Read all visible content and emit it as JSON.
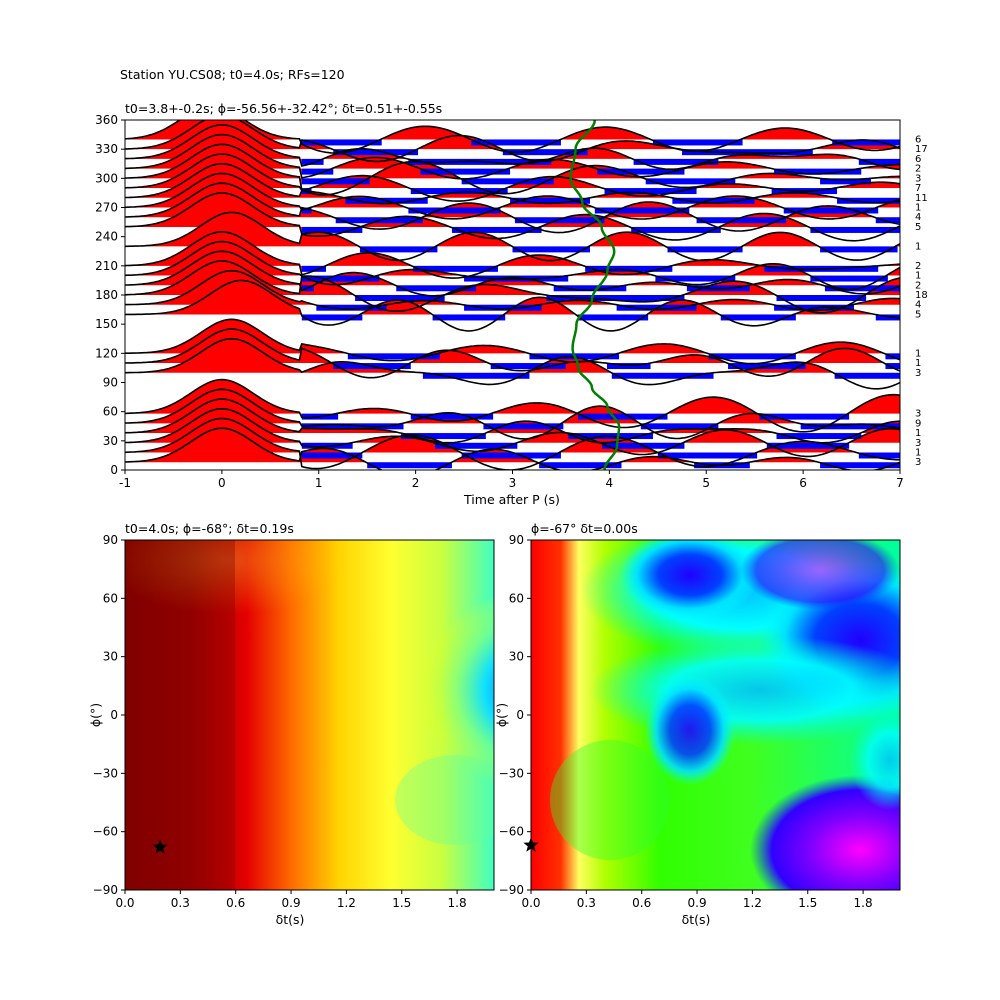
{
  "figure": {
    "suptitle": "Station YU.CS08; t0=4.0s; RFs=120"
  },
  "chart_data": [
    {
      "type": "line",
      "panel": "receiver-function-gather",
      "title": "t0=3.8+-0.2s; ϕ=-56.56+-32.42°; δt=0.51+-0.55s",
      "xlabel": "Time after P (s)",
      "ylabel": "",
      "xlim": [
        -1,
        7
      ],
      "ylim": [
        0,
        360
      ],
      "xticks": [
        -1,
        0,
        1,
        2,
        3,
        4,
        5,
        6,
        7
      ],
      "yticks": [
        0,
        30,
        60,
        90,
        120,
        150,
        180,
        210,
        240,
        270,
        300,
        330,
        360
      ],
      "fill_colors": {
        "positive": "#ff0000",
        "negative": "#0000ff"
      },
      "curve_color": "#008000",
      "back_azimuths": [
        8,
        18,
        28,
        38,
        48,
        58,
        100,
        110,
        120,
        160,
        170,
        180,
        190,
        200,
        210,
        230,
        250,
        260,
        270,
        280,
        290,
        300,
        310,
        320,
        330,
        340
      ],
      "counts": [
        "3",
        "1",
        "3",
        "1",
        "9",
        "3",
        "3",
        "1",
        "1",
        "5",
        "4",
        "18",
        "2",
        "1",
        "2",
        "1",
        "5",
        "4",
        "1",
        "11",
        "7",
        "3",
        "2",
        "6",
        "17",
        "6"
      ],
      "pulse_peak_times": [
        0.0,
        0.0,
        0.0,
        0.0,
        0.0,
        0.0,
        0.1,
        0.1,
        0.1,
        0.2,
        0.1,
        0.0,
        0.0,
        0.0,
        0.0,
        0.1,
        0.0,
        0.0,
        0.0,
        0.0,
        0.0,
        0.0,
        0.0,
        0.0,
        0.0,
        -0.1
      ],
      "pulse_amplitudes": [
        34,
        34,
        34,
        34,
        34,
        34,
        34,
        34,
        34,
        34,
        34,
        34,
        34,
        34,
        34,
        34,
        34,
        34,
        34,
        34,
        34,
        34,
        34,
        34,
        34,
        34
      ],
      "green_curve_times": [
        3.95,
        4.08,
        4.1,
        3.98,
        3.82,
        3.68,
        3.62,
        3.66,
        3.82,
        3.98,
        4.05,
        3.92,
        3.72,
        3.6,
        3.65,
        3.85
      ],
      "green_curve_baz": [
        0,
        25,
        45,
        65,
        85,
        105,
        125,
        150,
        175,
        205,
        225,
        250,
        275,
        300,
        330,
        360
      ]
    },
    {
      "type": "heatmap",
      "panel": "energy-map-left",
      "title": "t0=4.0s; ϕ=-68°; δt=0.19s",
      "xlabel": "δt(s)",
      "ylabel": "ϕ(°)",
      "xlim": [
        0,
        2
      ],
      "ylim": [
        -90,
        90
      ],
      "xticks": [
        "0.0",
        "0.3",
        "0.6",
        "0.9",
        "1.2",
        "1.5",
        "1.8"
      ],
      "yticks": [
        "90",
        "60",
        "30",
        "0",
        "−30",
        "−60",
        "−90"
      ],
      "colormap": "jet",
      "best": {
        "dt": 0.19,
        "phi": -68
      }
    },
    {
      "type": "heatmap",
      "panel": "energy-map-right",
      "title": "ϕ=-67° δt=0.00s",
      "xlabel": "δt(s)",
      "ylabel": "ϕ(°)",
      "xlim": [
        0,
        2
      ],
      "ylim": [
        -90,
        90
      ],
      "xticks": [
        "0.0",
        "0.3",
        "0.6",
        "0.9",
        "1.2",
        "1.5",
        "1.8"
      ],
      "yticks": [
        "90",
        "60",
        "30",
        "0",
        "−30",
        "−60",
        "−90"
      ],
      "colormap": "hsv",
      "best": {
        "dt": 0.0,
        "phi": -67
      }
    }
  ]
}
